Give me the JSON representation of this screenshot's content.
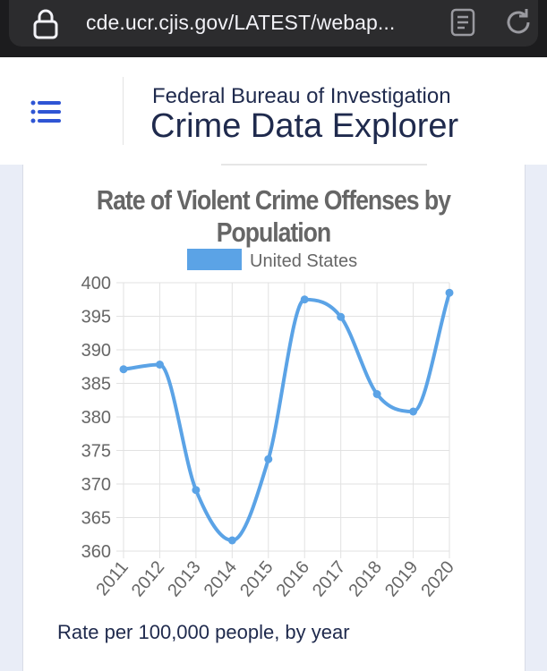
{
  "browser": {
    "url": "cde.ucr.cjis.gov/LATEST/webap..."
  },
  "header": {
    "agency": "Federal Bureau of Investigation",
    "brand": "Crime Data Explorer"
  },
  "chart_caption": "Rate per 100,000 people, by year",
  "colors": {
    "series": "#5ba3e6",
    "brand_text": "#1f2a4d",
    "menu_icon": "#2f55d4"
  },
  "chart_data": {
    "type": "line",
    "title": "Rate of Violent Crime Offenses by Population",
    "x": [
      "2011",
      "2012",
      "2013",
      "2014",
      "2015",
      "2016",
      "2017",
      "2018",
      "2019",
      "2020"
    ],
    "series": [
      {
        "name": "United States",
        "values": [
          387.1,
          387.8,
          369.1,
          361.6,
          373.7,
          397.5,
          394.9,
          383.4,
          380.8,
          398.5
        ]
      }
    ],
    "ylim": [
      360,
      400
    ],
    "yticks": [
      360,
      365,
      370,
      375,
      380,
      385,
      390,
      395,
      400
    ],
    "xlabel": "",
    "ylabel": "",
    "grid": true,
    "legend": "top"
  }
}
